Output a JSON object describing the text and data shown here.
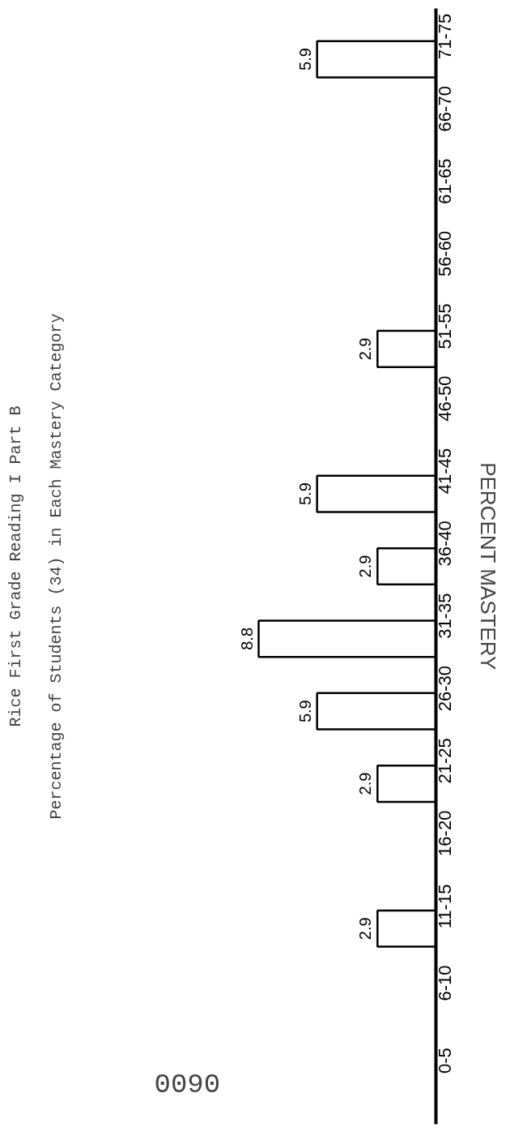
{
  "chart_data": {
    "type": "bar",
    "orientation": "horizontal",
    "title": "Rice First Grade Reading I Part B",
    "subtitle": "Percentage of Students (34) in Each Mastery Category",
    "ylabel": "PERCENT MASTERY",
    "categories": [
      "71-75",
      "66-70",
      "61-65",
      "56-60",
      "51-55",
      "46-50",
      "41-45",
      "36-40",
      "31-35",
      "26-30",
      "21-25",
      "16-20",
      "11-15",
      "6-10",
      "0-5"
    ],
    "values": [
      5.9,
      null,
      null,
      null,
      2.9,
      null,
      5.9,
      2.9,
      8.8,
      5.9,
      2.9,
      null,
      2.9,
      null,
      null
    ],
    "value_labels": [
      "5.9",
      null,
      null,
      null,
      "2.9",
      null,
      "5.9",
      "2.9",
      "8.8",
      "5.9",
      "2.9",
      null,
      "2.9",
      null,
      null
    ],
    "color": "#ffffff",
    "annotations": [
      "0090"
    ],
    "grid": false
  }
}
